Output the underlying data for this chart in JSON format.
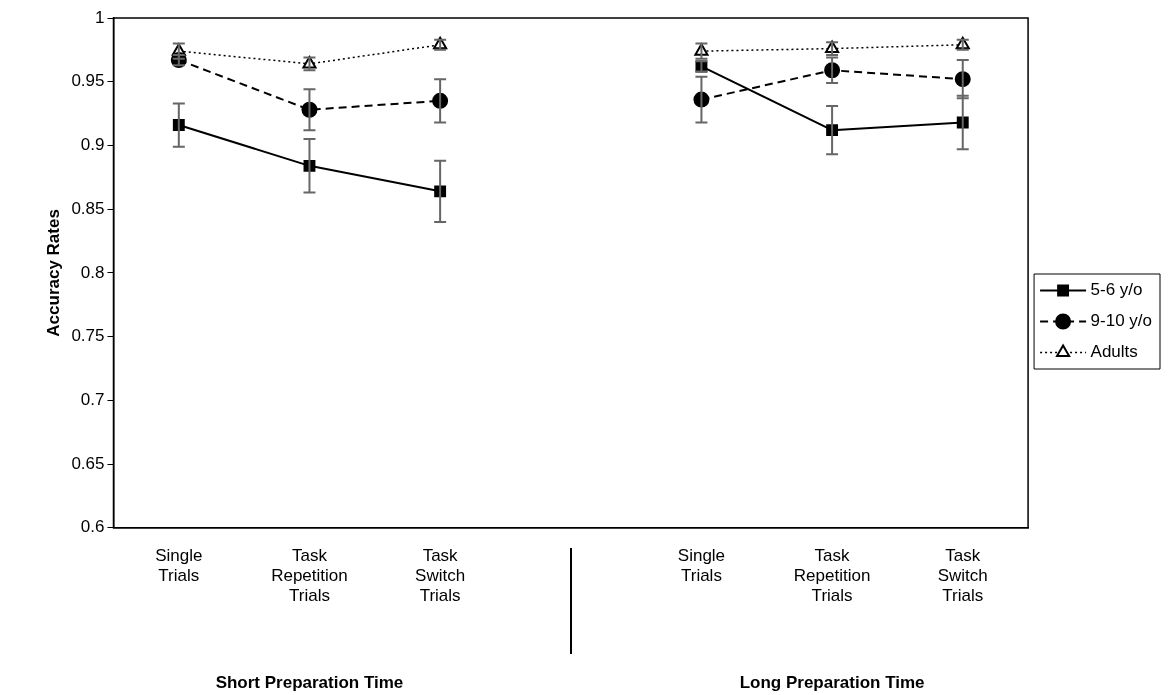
{
  "chart_data": {
    "type": "line",
    "ylabel": "Accuracy Rates",
    "categories": [
      "Single Trials",
      "Task Repetition Trials",
      "Task Switch Trials",
      null,
      "Single Trials",
      "Task Repetition Trials",
      "Task Switch Trials"
    ],
    "series": [
      {
        "name": "5-6 y/o",
        "color": "#000000",
        "marker": "square",
        "line_style": "solid",
        "values": [
          0.916,
          0.884,
          0.864,
          null,
          0.962,
          0.912,
          0.918
        ],
        "errors": [
          0.017,
          0.021,
          0.024,
          null,
          0.004,
          0.019,
          0.021
        ]
      },
      {
        "name": "9-10 y/o",
        "color": "#000000",
        "marker": "circle",
        "line_style": "dashed",
        "values": [
          0.967,
          0.928,
          0.935,
          null,
          0.936,
          0.959,
          0.952
        ],
        "errors": [
          0.004,
          0.016,
          0.017,
          null,
          0.018,
          0.01,
          0.015
        ]
      },
      {
        "name": "Adults",
        "color": "#000000",
        "marker": "triangle",
        "line_style": "dotted",
        "values": [
          0.974,
          0.964,
          0.979,
          null,
          0.974,
          0.976,
          0.979
        ],
        "errors": [
          0.006,
          0.005,
          0.004,
          null,
          0.006,
          0.005,
          0.004
        ]
      }
    ],
    "annotations": [
      "Short Preparation Time",
      "Long Preparation Time"
    ],
    "ylim": [
      0.6,
      1
    ],
    "yticks": [
      0.6,
      0.65,
      0.7,
      0.75,
      0.8,
      0.85,
      0.9,
      0.95,
      1
    ],
    "grid": false,
    "legend": "right"
  }
}
